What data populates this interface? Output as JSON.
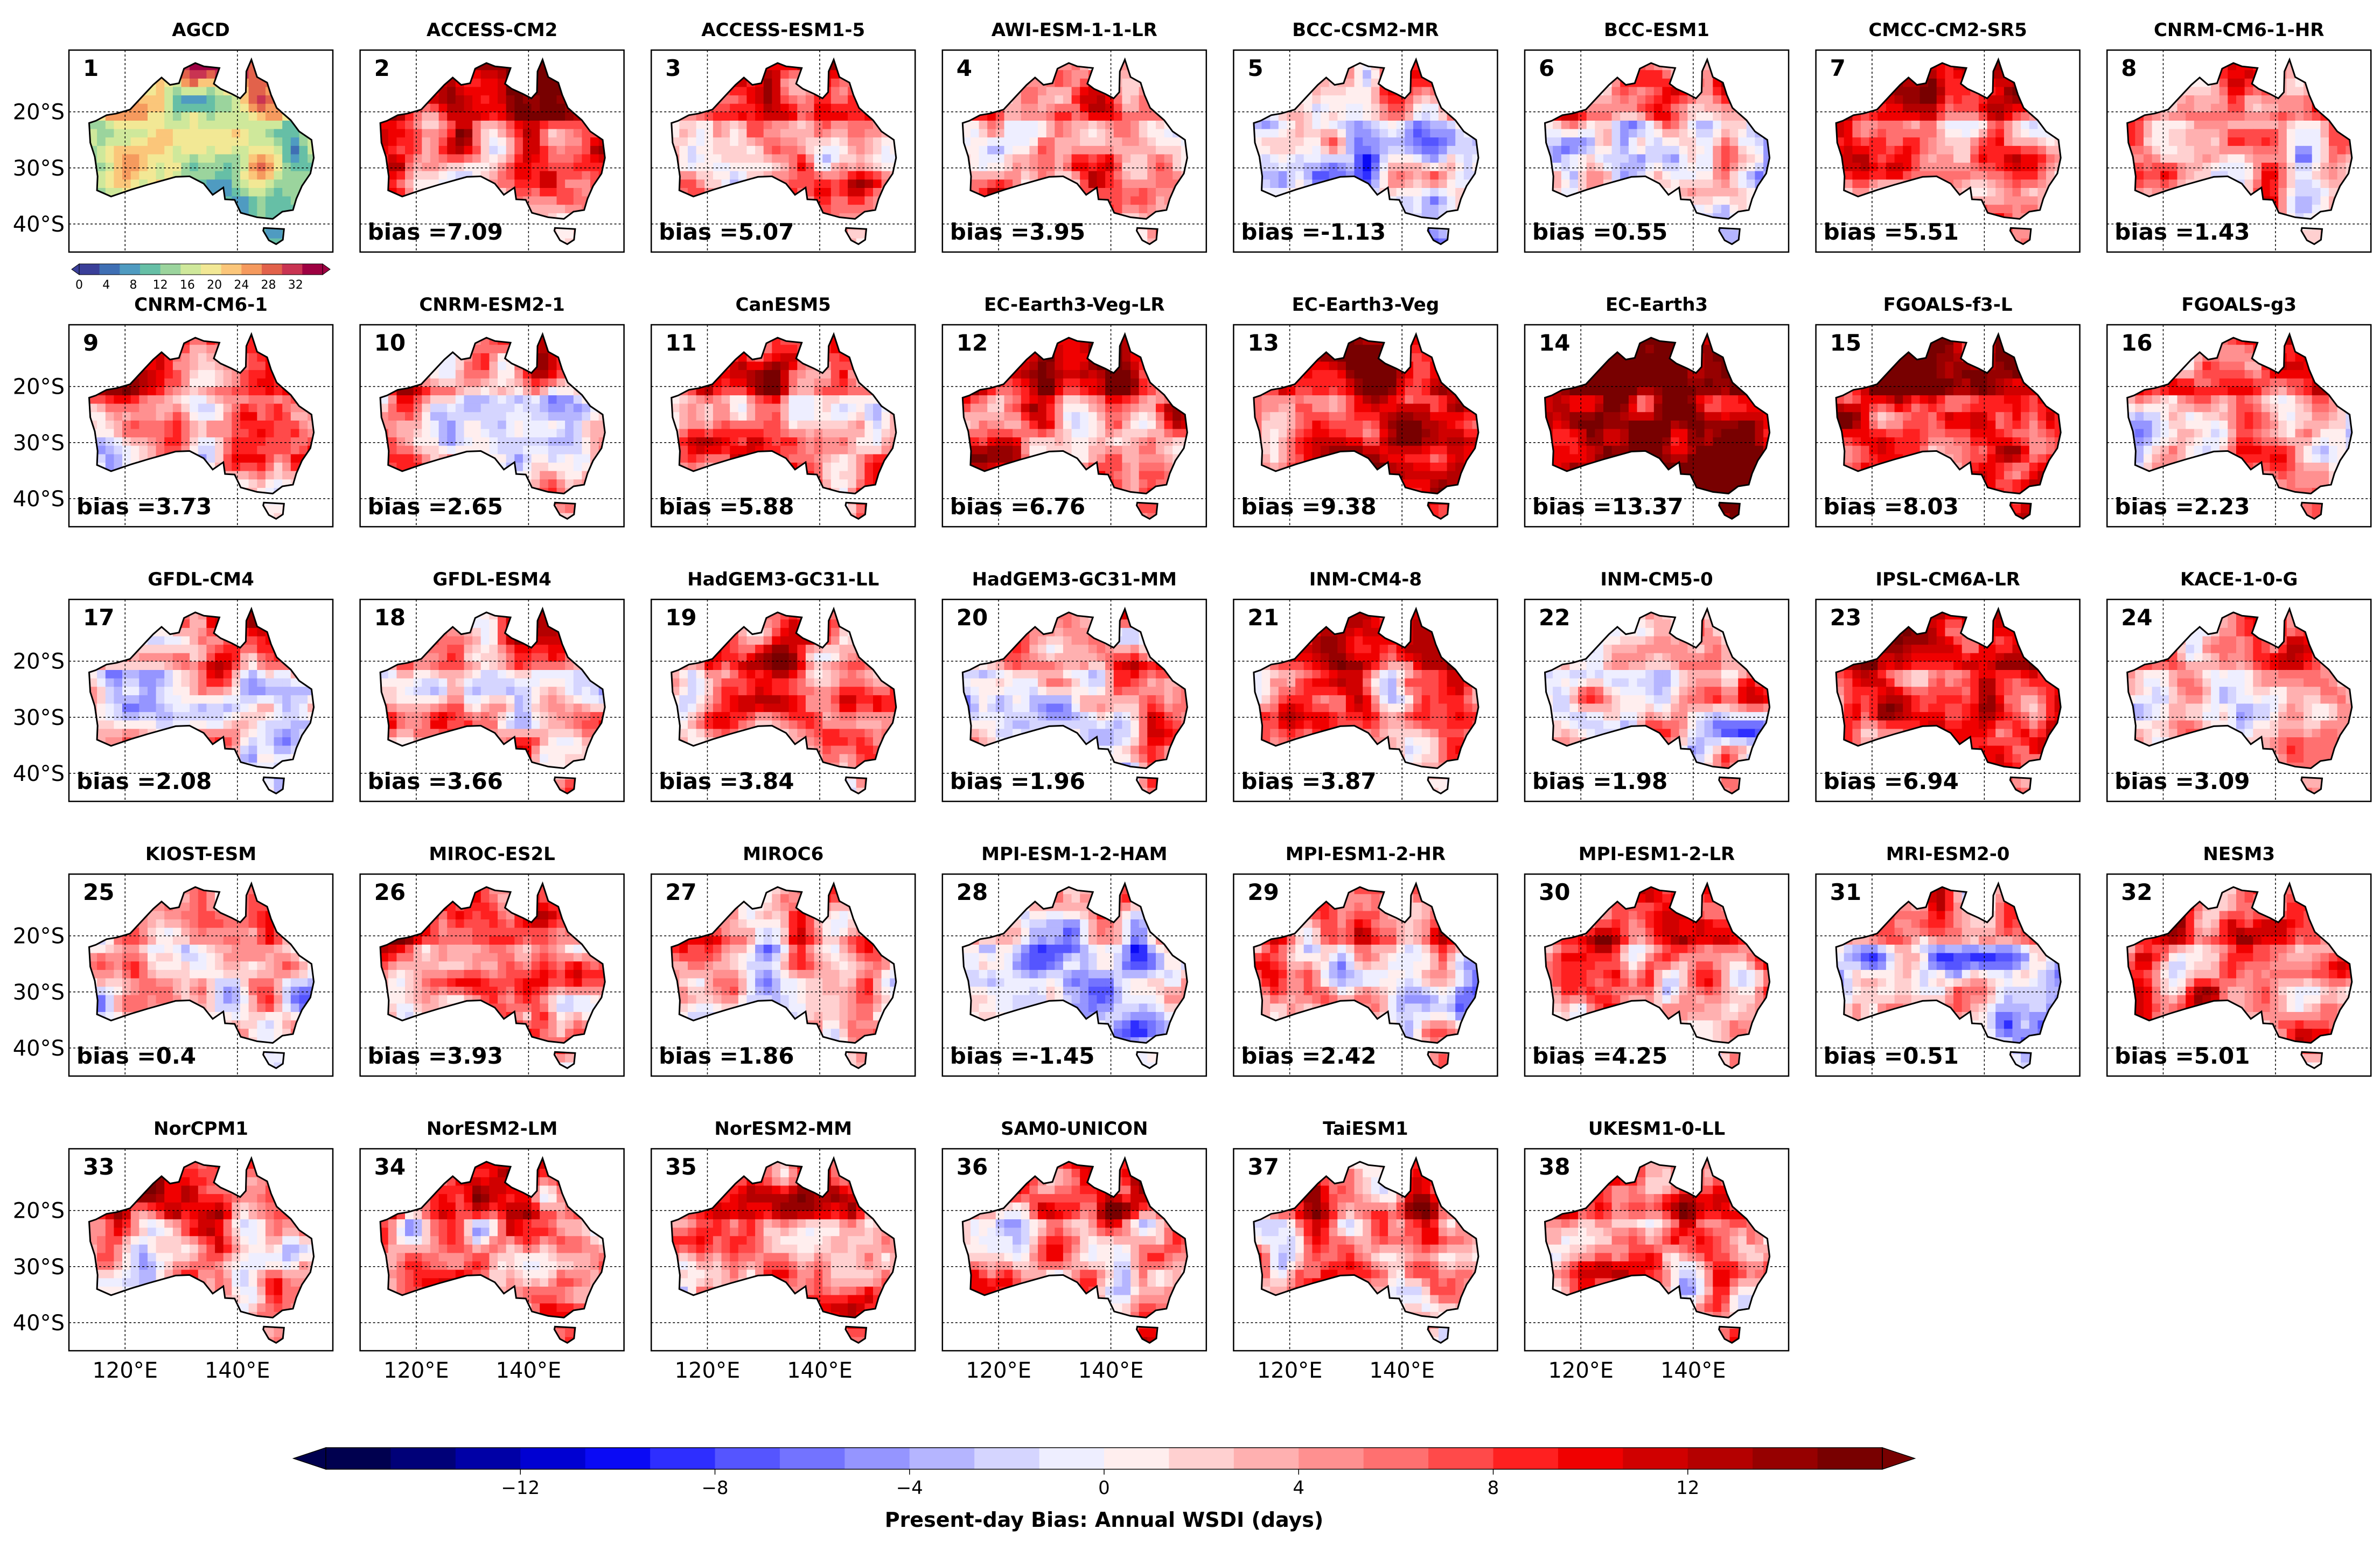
{
  "chart_data": {
    "type": "heatmap",
    "title": "Present-day Bias: Annual WSDI (days)",
    "description_panel": "AGCD observed annual WSDI",
    "lon_ticks": [
      "120°E",
      "140°E"
    ],
    "lat_ticks": [
      "20°S",
      "30°S",
      "40°S"
    ],
    "reference_panel": {
      "number": "1",
      "name": "AGCD",
      "colorbar_ticks": [
        "0",
        "4",
        "8",
        "12",
        "16",
        "20",
        "24",
        "28",
        "32"
      ],
      "colorbar_colors": [
        "#3a3f99",
        "#3f6fb4",
        "#4f9bc1",
        "#66bfa6",
        "#9bd49d",
        "#cfe89b",
        "#f2e895",
        "#fbc67a",
        "#f59a5e",
        "#e2624b",
        "#c93452",
        "#9e0142"
      ]
    },
    "panels": [
      {
        "number": "2",
        "name": "ACCESS-CM2",
        "bias": "7.09",
        "label": "bias =7.09"
      },
      {
        "number": "3",
        "name": "ACCESS-ESM1-5",
        "bias": "5.07",
        "label": "bias =5.07"
      },
      {
        "number": "4",
        "name": "AWI-ESM-1-1-LR",
        "bias": "3.95",
        "label": "bias =3.95"
      },
      {
        "number": "5",
        "name": "BCC-CSM2-MR",
        "bias": "-1.13",
        "label": "bias =-1.13"
      },
      {
        "number": "6",
        "name": "BCC-ESM1",
        "bias": "0.55",
        "label": "bias =0.55"
      },
      {
        "number": "7",
        "name": "CMCC-CM2-SR5",
        "bias": "5.51",
        "label": "bias =5.51"
      },
      {
        "number": "8",
        "name": "CNRM-CM6-1-HR",
        "bias": "1.43",
        "label": "bias =1.43"
      },
      {
        "number": "9",
        "name": "CNRM-CM6-1",
        "bias": "3.73",
        "label": "bias =3.73"
      },
      {
        "number": "10",
        "name": "CNRM-ESM2-1",
        "bias": "2.65",
        "label": "bias =2.65"
      },
      {
        "number": "11",
        "name": "CanESM5",
        "bias": "5.88",
        "label": "bias =5.88"
      },
      {
        "number": "12",
        "name": "EC-Earth3-Veg-LR",
        "bias": "6.76",
        "label": "bias =6.76"
      },
      {
        "number": "13",
        "name": "EC-Earth3-Veg",
        "bias": "9.38",
        "label": "bias =9.38"
      },
      {
        "number": "14",
        "name": "EC-Earth3",
        "bias": "13.37",
        "label": "bias =13.37"
      },
      {
        "number": "15",
        "name": "FGOALS-f3-L",
        "bias": "8.03",
        "label": "bias =8.03"
      },
      {
        "number": "16",
        "name": "FGOALS-g3",
        "bias": "2.23",
        "label": "bias =2.23"
      },
      {
        "number": "17",
        "name": "GFDL-CM4",
        "bias": "2.08",
        "label": "bias =2.08"
      },
      {
        "number": "18",
        "name": "GFDL-ESM4",
        "bias": "3.66",
        "label": "bias =3.66"
      },
      {
        "number": "19",
        "name": "HadGEM3-GC31-LL",
        "bias": "3.84",
        "label": "bias =3.84"
      },
      {
        "number": "20",
        "name": "HadGEM3-GC31-MM",
        "bias": "1.96",
        "label": "bias =1.96"
      },
      {
        "number": "21",
        "name": "INM-CM4-8",
        "bias": "3.87",
        "label": "bias =3.87"
      },
      {
        "number": "22",
        "name": "INM-CM5-0",
        "bias": "1.98",
        "label": "bias =1.98"
      },
      {
        "number": "23",
        "name": "IPSL-CM6A-LR",
        "bias": "6.94",
        "label": "bias =6.94"
      },
      {
        "number": "24",
        "name": "KACE-1-0-G",
        "bias": "3.09",
        "label": "bias =3.09"
      },
      {
        "number": "25",
        "name": "KIOST-ESM",
        "bias": "0.4",
        "label": "bias =0.4"
      },
      {
        "number": "26",
        "name": "MIROC-ES2L",
        "bias": "3.93",
        "label": "bias =3.93"
      },
      {
        "number": "27",
        "name": "MIROC6",
        "bias": "1.86",
        "label": "bias =1.86"
      },
      {
        "number": "28",
        "name": "MPI-ESM-1-2-HAM",
        "bias": "-1.45",
        "label": "bias =-1.45"
      },
      {
        "number": "29",
        "name": "MPI-ESM1-2-HR",
        "bias": "2.42",
        "label": "bias =2.42"
      },
      {
        "number": "30",
        "name": "MPI-ESM1-2-LR",
        "bias": "4.25",
        "label": "bias =4.25"
      },
      {
        "number": "31",
        "name": "MRI-ESM2-0",
        "bias": "0.51",
        "label": "bias =0.51"
      },
      {
        "number": "32",
        "name": "NESM3",
        "bias": "5.01",
        "label": "bias =5.01"
      },
      {
        "number": "33",
        "name": "NorCPM1",
        "bias": null,
        "label": null
      },
      {
        "number": "34",
        "name": "NorESM2-LM",
        "bias": null,
        "label": null
      },
      {
        "number": "35",
        "name": "NorESM2-MM",
        "bias": null,
        "label": null
      },
      {
        "number": "36",
        "name": "SAM0-UNICON",
        "bias": null,
        "label": null
      },
      {
        "number": "37",
        "name": "TaiESM1",
        "bias": null,
        "label": null
      },
      {
        "number": "38",
        "name": "UKESM1-0-LL",
        "bias": null,
        "label": null
      }
    ],
    "colorbar": {
      "label": "Present-day Bias: Annual WSDI (days)",
      "range": [
        -16,
        16
      ],
      "ticks": [
        "−12",
        "−8",
        "−4",
        "0",
        "4",
        "8",
        "12"
      ],
      "tick_values": [
        -12,
        -8,
        -4,
        0,
        4,
        8,
        12
      ],
      "colors": [
        "#00004f",
        "#000078",
        "#0000a6",
        "#0000d2",
        "#0a0af5",
        "#2e2eff",
        "#5555ff",
        "#7373ff",
        "#9595ff",
        "#b5b5ff",
        "#d5d5ff",
        "#eeeeff",
        "#ffeeee",
        "#ffd0d0",
        "#ffb0b0",
        "#ff9090",
        "#ff7070",
        "#ff4a4a",
        "#ff2020",
        "#f00000",
        "#d00000",
        "#b40000",
        "#960000",
        "#780000"
      ],
      "extend": "both"
    }
  }
}
